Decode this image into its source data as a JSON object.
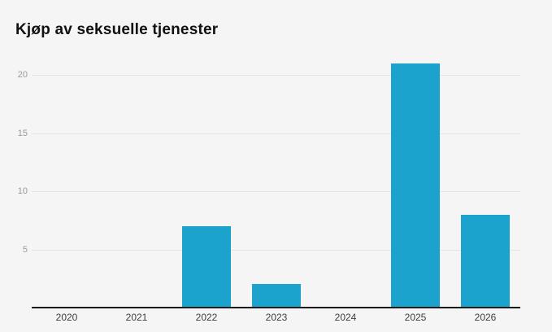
{
  "title": "Kjøp av seksuelle tjenester",
  "chart_data": {
    "type": "bar",
    "title": "Kjøp av seksuelle tjenester",
    "categories": [
      "2020",
      "2021",
      "2022",
      "2023",
      "2024",
      "2025",
      "2026"
    ],
    "values": [
      0,
      0,
      7,
      2,
      0,
      21,
      8
    ],
    "xlabel": "",
    "ylabel": "",
    "ylim": [
      0,
      21
    ],
    "yticks": [
      5,
      10,
      15,
      20
    ],
    "grid": true,
    "legend": "none",
    "bar_color": "#1ba3ce"
  },
  "colors": {
    "background": "#f5f5f5",
    "bar": "#1ba3ce",
    "gridline": "#e4e4e4",
    "axis_line": "#1a1a1a",
    "title_text": "#111111",
    "y_tick_label": "#9a9a9a",
    "x_tick_label": "#3d3d3d"
  }
}
